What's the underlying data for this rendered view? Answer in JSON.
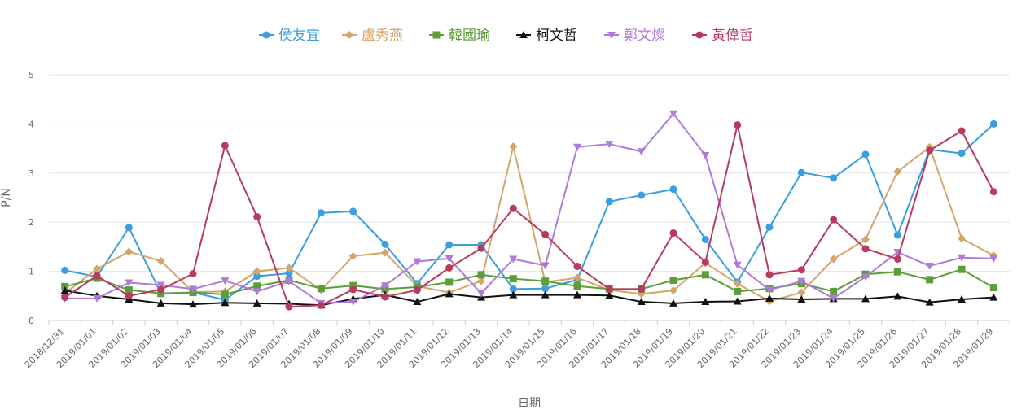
{
  "chart_data": {
    "type": "line",
    "xlabel": "日期",
    "ylabel": "P/N",
    "ylim": [
      0,
      5
    ],
    "yticks": [
      0,
      1,
      2,
      3,
      4,
      5
    ],
    "grid": true,
    "legend_position": "top-center",
    "categories": [
      "2018/12/31",
      "2019/01/01",
      "2019/01/02",
      "2019/01/03",
      "2019/01/04",
      "2019/01/05",
      "2019/01/06",
      "2019/01/07",
      "2019/01/08",
      "2019/01/09",
      "2019/01/10",
      "2019/01/11",
      "2019/01/12",
      "2019/01/13",
      "2019/01/14",
      "2019/01/15",
      "2019/01/16",
      "2019/01/17",
      "2019/01/18",
      "2019/01/19",
      "2019/01/20",
      "2019/01/21",
      "2019/01/22",
      "2019/01/23",
      "2019/01/24",
      "2019/01/25",
      "2019/01/26",
      "2019/01/27",
      "2019/01/28",
      "2019/01/29"
    ],
    "series": [
      {
        "name": "侯友宜",
        "color": "#3a9ee0",
        "marker": "circle",
        "values": [
          1.02,
          0.89,
          1.89,
          0.55,
          0.57,
          0.42,
          0.9,
          0.96,
          2.19,
          2.22,
          1.55,
          0.75,
          1.54,
          1.54,
          0.64,
          0.65,
          0.83,
          2.42,
          2.55,
          2.67,
          1.65,
          0.78,
          1.9,
          3.01,
          2.9,
          3.38,
          1.74,
          3.48,
          3.4,
          4.0
        ]
      },
      {
        "name": "盧秀燕",
        "color": "#d4a56a",
        "marker": "diamond",
        "values": [
          0.55,
          1.05,
          1.4,
          1.21,
          0.58,
          0.59,
          1.0,
          1.07,
          0.62,
          1.31,
          1.38,
          0.7,
          0.57,
          0.8,
          3.54,
          0.78,
          0.87,
          0.62,
          0.54,
          0.61,
          1.17,
          0.75,
          0.39,
          0.57,
          1.25,
          1.65,
          3.03,
          3.53,
          1.67,
          1.32
        ]
      },
      {
        "name": "韓國瑜",
        "color": "#5b9e3a",
        "marker": "square",
        "values": [
          0.69,
          0.86,
          0.62,
          0.55,
          0.57,
          0.53,
          0.7,
          0.82,
          0.65,
          0.71,
          0.64,
          0.68,
          0.78,
          0.93,
          0.85,
          0.8,
          0.7,
          0.64,
          0.64,
          0.82,
          0.93,
          0.59,
          0.65,
          0.75,
          0.59,
          0.94,
          0.99,
          0.83,
          1.04,
          0.67
        ]
      },
      {
        "name": "柯文哲",
        "color": "#111111",
        "marker": "triangle",
        "values": [
          0.61,
          0.5,
          0.43,
          0.35,
          0.33,
          0.36,
          0.35,
          0.34,
          0.31,
          0.44,
          0.52,
          0.38,
          0.54,
          0.47,
          0.52,
          0.52,
          0.52,
          0.51,
          0.38,
          0.35,
          0.38,
          0.39,
          0.45,
          0.43,
          0.44,
          0.44,
          0.49,
          0.37,
          0.43,
          0.47
        ]
      },
      {
        "name": "鄭文燦",
        "color": "#b07ad8",
        "marker": "triangle-down",
        "values": [
          0.45,
          0.45,
          0.77,
          0.72,
          0.64,
          0.81,
          0.59,
          0.8,
          0.35,
          0.38,
          0.71,
          1.2,
          1.26,
          0.55,
          1.25,
          1.12,
          3.53,
          3.59,
          3.44,
          4.21,
          3.36,
          1.13,
          0.62,
          0.8,
          0.45,
          0.89,
          1.39,
          1.11,
          1.28,
          1.26
        ]
      },
      {
        "name": "黃偉哲",
        "color": "#b83a5e",
        "marker": "circle",
        "values": [
          0.47,
          0.91,
          0.5,
          0.63,
          0.95,
          3.56,
          2.11,
          0.28,
          0.31,
          0.63,
          0.48,
          0.62,
          1.07,
          1.47,
          2.28,
          1.75,
          1.1,
          0.64,
          0.64,
          1.78,
          1.19,
          3.98,
          0.93,
          1.03,
          2.05,
          1.46,
          1.25,
          3.46,
          3.86,
          2.62
        ]
      }
    ]
  }
}
